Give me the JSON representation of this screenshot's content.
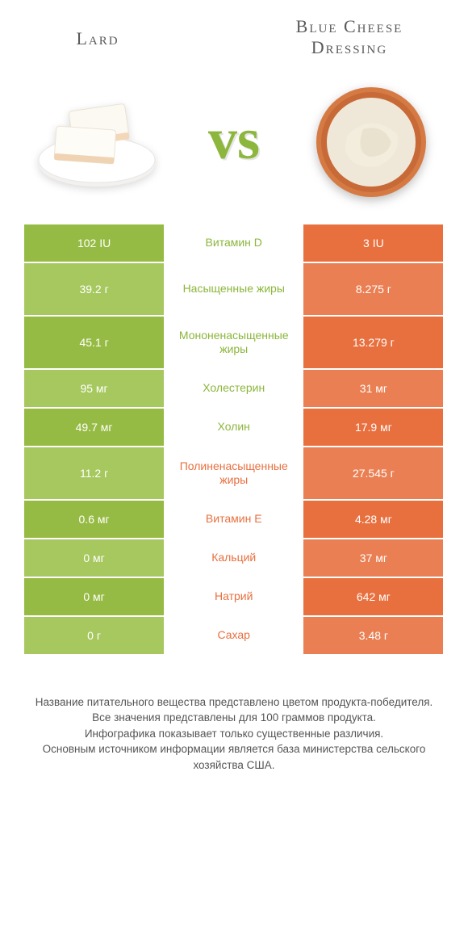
{
  "header": {
    "left": "Lard",
    "right": "Blue Cheese Dressing"
  },
  "vs": "vs",
  "colors": {
    "green": "#96bb44",
    "green_alt": "#a6c85f",
    "orange": "#e8703f",
    "orange_alt": "#ea7f53",
    "mid_text_green": "#8cb63c",
    "mid_text_orange": "#e8703f",
    "white": "#ffffff"
  },
  "rows": [
    {
      "label": "Витамин D",
      "left": "102 IU",
      "right": "3 IU",
      "winner": "left",
      "height": "small"
    },
    {
      "label": "Насыщенные жиры",
      "left": "39.2 г",
      "right": "8.275 г",
      "winner": "left",
      "height": "large"
    },
    {
      "label": "Мононенасыщенные жиры",
      "left": "45.1 г",
      "right": "13.279 г",
      "winner": "left",
      "height": "large"
    },
    {
      "label": "Холестерин",
      "left": "95 мг",
      "right": "31 мг",
      "winner": "left",
      "height": "small"
    },
    {
      "label": "Холин",
      "left": "49.7 мг",
      "right": "17.9 мг",
      "winner": "left",
      "height": "small"
    },
    {
      "label": "Полиненасыщенные жиры",
      "left": "11.2 г",
      "right": "27.545 г",
      "winner": "right",
      "height": "large"
    },
    {
      "label": "Витамин E",
      "left": "0.6 мг",
      "right": "4.28 мг",
      "winner": "right",
      "height": "small"
    },
    {
      "label": "Кальций",
      "left": "0 мг",
      "right": "37 мг",
      "winner": "right",
      "height": "small"
    },
    {
      "label": "Натрий",
      "left": "0 мг",
      "right": "642 мг",
      "winner": "right",
      "height": "small"
    },
    {
      "label": "Сахар",
      "left": "0 г",
      "right": "3.48 г",
      "winner": "right",
      "height": "small"
    }
  ],
  "footer": [
    "Название питательного вещества представлено цветом продукта-победителя.",
    "Все значения представлены для 100 граммов продукта.",
    "Инфографика показывает только существенные различия.",
    "Основным источником информации является база министерства сельского хозяйства США."
  ]
}
